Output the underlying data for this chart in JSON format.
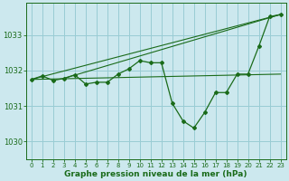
{
  "background_color": "#cce8ee",
  "grid_color": "#99ccd4",
  "line_color": "#1a6b1a",
  "xlabel": "Graphe pression niveau de la mer (hPa)",
  "ylim": [
    1029.5,
    1033.9
  ],
  "xlim": [
    -0.5,
    23.5
  ],
  "yticks": [
    1030,
    1031,
    1032,
    1033
  ],
  "xticks": [
    0,
    1,
    2,
    3,
    4,
    5,
    6,
    7,
    8,
    9,
    10,
    11,
    12,
    13,
    14,
    15,
    16,
    17,
    18,
    19,
    20,
    21,
    22,
    23
  ],
  "main_line_x": [
    0,
    1,
    2,
    3,
    4,
    5,
    6,
    7,
    8,
    9,
    10,
    11,
    12,
    13,
    14,
    15,
    16,
    17,
    18,
    19,
    20,
    21,
    22,
    23
  ],
  "main_line_y": [
    1031.75,
    1031.85,
    1031.72,
    1031.78,
    1031.88,
    1031.62,
    1031.67,
    1031.67,
    1031.9,
    1032.05,
    1032.28,
    1032.22,
    1032.22,
    1031.08,
    1030.58,
    1030.38,
    1030.82,
    1031.38,
    1031.38,
    1031.9,
    1031.9,
    1032.68,
    1033.52,
    1033.58
  ],
  "trend_lines": [
    {
      "x0": 0,
      "y0": 1031.75,
      "x1": 23,
      "y1": 1033.58
    },
    {
      "x0": 0,
      "y0": 1031.75,
      "x1": 23,
      "y1": 1031.9
    },
    {
      "x0": 3,
      "y0": 1031.78,
      "x1": 23,
      "y1": 1033.58
    }
  ]
}
